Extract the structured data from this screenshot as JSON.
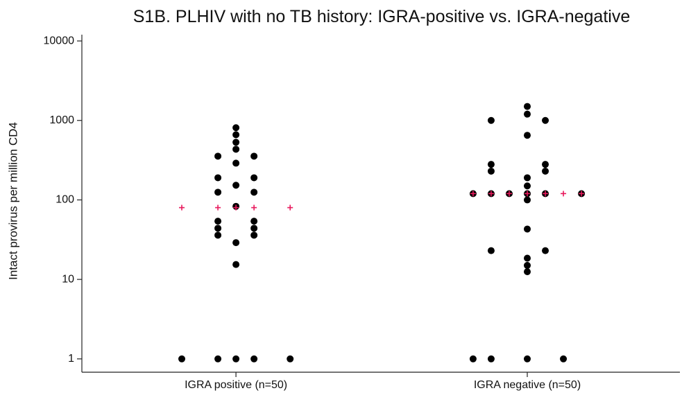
{
  "chart_data": {
    "type": "scatter",
    "title": "S1B. PLHIV with no TB history: IGRA-positive vs. IGRA-negative",
    "ylabel": "Intact provirus per million CD4",
    "log_y": true,
    "xlim": [
      0.471,
      2.524
    ],
    "ylim": [
      0.68,
      12000
    ],
    "xticks": [
      {
        "value": 1,
        "label": "IGRA positive (n=50)"
      },
      {
        "value": 2,
        "label": "IGRA negative (n=50)"
      }
    ],
    "yticks": [
      1,
      10,
      100,
      1000,
      10000
    ],
    "series": [
      {
        "color": "#000000",
        "marker": "circle",
        "x": [
          0.814,
          0.938,
          0.938,
          0.938,
          0.938,
          0.938,
          0.938,
          0.938,
          1,
          1,
          1,
          1,
          1,
          1,
          1,
          1,
          1,
          1,
          1.062,
          1.062,
          1.062,
          1.062,
          1.062,
          1.062,
          1.062,
          1.186,
          1.814,
          1.814,
          1.876,
          1.876,
          1.876,
          1.876,
          1.876,
          1.876,
          1.938,
          2,
          2,
          2,
          2,
          2,
          2,
          2,
          2,
          2,
          2,
          2,
          2,
          2.062,
          2.062,
          2.062,
          2.062,
          2.062,
          2.124,
          2.186
        ],
        "values": [
          1,
          355,
          190,
          125,
          54,
          44,
          36,
          1,
          810,
          661,
          531,
          434,
          290,
          153,
          83,
          29,
          15.4,
          1,
          355,
          190,
          125,
          54,
          44,
          36,
          1,
          1,
          120,
          1,
          1000,
          280,
          230,
          120,
          23,
          1,
          120,
          1500,
          1200,
          650,
          190,
          150,
          120,
          100,
          43,
          18.5,
          15,
          12.5,
          1,
          1000,
          280,
          230,
          120,
          23,
          1,
          120
        ]
      },
      {
        "color": "#e8185c",
        "marker": "plus",
        "x": [
          0.814,
          0.938,
          1,
          1.062,
          1.186,
          1.814,
          1.876,
          1.938,
          2,
          2.062,
          2.124,
          2.186
        ],
        "values": [
          80,
          80,
          80,
          80,
          80,
          120,
          120,
          120,
          120,
          120,
          120,
          120
        ]
      }
    ]
  }
}
